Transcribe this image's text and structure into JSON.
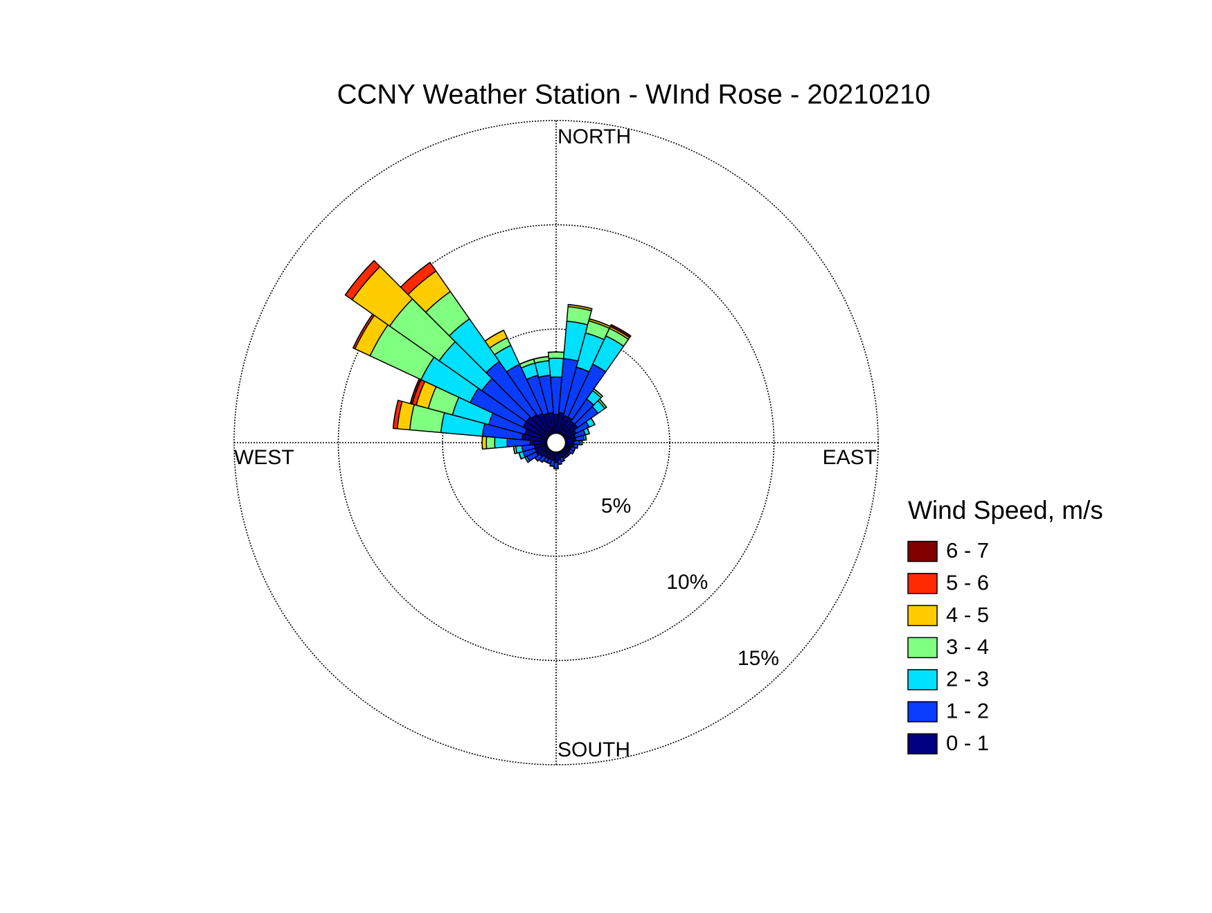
{
  "chart_data": {
    "type": "windrose",
    "title": "CCNY Weather Station - WInd Rose - 20210210",
    "compass_labels": {
      "north": "NORTH",
      "east": "EAST",
      "south": "SOUTH",
      "west": "WEST"
    },
    "legend_title": "Wind Speed, m/s",
    "directions": [
      0,
      10,
      20,
      30,
      40,
      50,
      60,
      70,
      80,
      90,
      100,
      110,
      120,
      130,
      140,
      150,
      160,
      170,
      180,
      190,
      200,
      210,
      220,
      230,
      240,
      250,
      260,
      270,
      280,
      290,
      300,
      310,
      320,
      330,
      340,
      350
    ],
    "rlim": [
      0,
      15
    ],
    "rticks": [
      {
        "value": 5,
        "label": "5%"
      },
      {
        "value": 10,
        "label": "10%"
      },
      {
        "value": 15,
        "label": "15%"
      }
    ],
    "grid": true,
    "series": [
      {
        "name": "0 - 1",
        "color": "#000080",
        "values": [
          0.9,
          1.0,
          0.9,
          0.9,
          0.8,
          0.8,
          0.6,
          0.5,
          0.5,
          0.4,
          0.4,
          0.3,
          0.3,
          0.3,
          0.3,
          0.3,
          0.3,
          0.4,
          0.5,
          0.4,
          0.4,
          0.4,
          0.4,
          0.5,
          0.6,
          0.6,
          0.6,
          0.8,
          1.2,
          1.1,
          1.3,
          1.3,
          1.2,
          1.1,
          1.0,
          1.0
        ]
      },
      {
        "name": "1 - 2",
        "color": "#0a3cff",
        "values": [
          1.8,
          2.6,
          2.4,
          2.8,
          1.3,
          1.2,
          0.7,
          0.5,
          0.4,
          0.3,
          0.2,
          0.2,
          0.2,
          0.1,
          0.1,
          0.1,
          0.2,
          0.2,
          0.3,
          0.3,
          0.2,
          0.2,
          0.3,
          0.3,
          0.5,
          0.6,
          0.6,
          1.1,
          1.9,
          1.8,
          2.8,
          2.6,
          3.1,
          2.6,
          1.9,
          1.8
        ]
      },
      {
        "name": "2 - 3",
        "color": "#00e0ff",
        "values": [
          0.9,
          1.8,
          1.7,
          1.5,
          0.5,
          0.4,
          0.3,
          0.2,
          0.1,
          0.1,
          0,
          0,
          0,
          0,
          0,
          0,
          0,
          0,
          0,
          0,
          0,
          0,
          0,
          0,
          0.1,
          0.2,
          0.3,
          0.6,
          2.0,
          1.8,
          2.6,
          2.5,
          2.5,
          1.0,
          0.6,
          0.7
        ]
      },
      {
        "name": "3 - 4",
        "color": "#80ff80",
        "values": [
          0.3,
          0.7,
          0.6,
          0.4,
          0.1,
          0.1,
          0,
          0,
          0,
          0,
          0,
          0,
          0,
          0,
          0,
          0,
          0,
          0,
          0,
          0,
          0,
          0,
          0,
          0,
          0,
          0,
          0.1,
          0.4,
          1.5,
          1.2,
          2.7,
          2.9,
          1.6,
          0.4,
          0.2,
          0.2
        ]
      },
      {
        "name": "4 - 5",
        "color": "#ffcc00",
        "values": [
          0,
          0.1,
          0.1,
          0.1,
          0,
          0,
          0,
          0,
          0,
          0,
          0,
          0,
          0,
          0,
          0,
          0,
          0,
          0,
          0,
          0,
          0,
          0,
          0,
          0,
          0,
          0,
          0,
          0.2,
          0.6,
          0.6,
          0.8,
          2.2,
          1.2,
          0.4,
          0,
          0
        ]
      },
      {
        "name": "5 - 6",
        "color": "#ff2a00",
        "values": [
          0,
          0,
          0,
          0,
          0,
          0,
          0,
          0,
          0,
          0,
          0,
          0,
          0,
          0,
          0,
          0,
          0,
          0,
          0,
          0,
          0,
          0,
          0,
          0,
          0,
          0,
          0,
          0,
          0.2,
          0.2,
          0.1,
          0.4,
          0.5,
          0,
          0,
          0
        ]
      },
      {
        "name": "6 - 7",
        "color": "#800000",
        "values": [
          0,
          0,
          0,
          0.1,
          0,
          0,
          0,
          0,
          0,
          0,
          0,
          0,
          0,
          0,
          0,
          0,
          0,
          0,
          0,
          0,
          0,
          0,
          0,
          0,
          0,
          0,
          0,
          0,
          0,
          0.1,
          0,
          0,
          0,
          0,
          0,
          0
        ]
      }
    ]
  }
}
